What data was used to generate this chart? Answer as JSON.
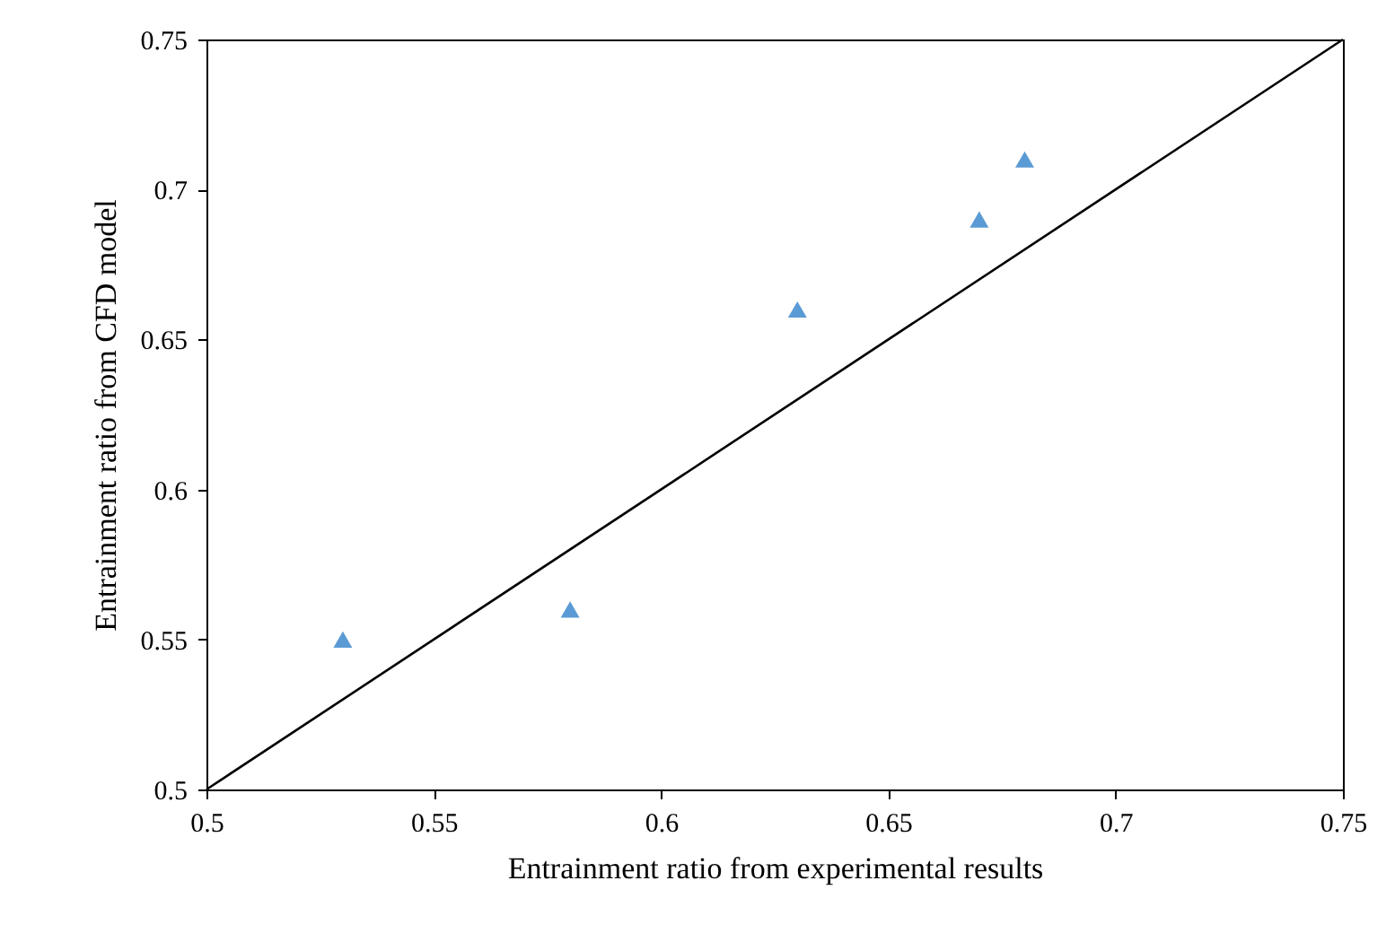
{
  "chart_data": {
    "type": "scatter",
    "xlabel": "Entrainment ratio from experimental results",
    "ylabel": "Entrainment ratio from CFD model",
    "x": [
      0.53,
      0.58,
      0.63,
      0.67,
      0.68
    ],
    "series": [
      {
        "color": "#5b9bd5",
        "values": [
          0.55,
          0.56,
          0.66,
          0.69,
          0.71
        ],
        "marker": "triangle"
      },
      {
        "type": "line",
        "x": [
          0.5,
          0.75
        ],
        "values": [
          0.5,
          0.75
        ],
        "color": "#000000"
      }
    ],
    "xlim": [
      0.5,
      0.75
    ],
    "xticks": [
      0.5,
      0.55,
      0.6,
      0.65,
      0.7,
      0.75
    ],
    "ylim": [
      0.5,
      0.75
    ],
    "yticks": [
      0.5,
      0.55,
      0.6,
      0.65,
      0.7,
      0.75
    ],
    "grid": false
  }
}
